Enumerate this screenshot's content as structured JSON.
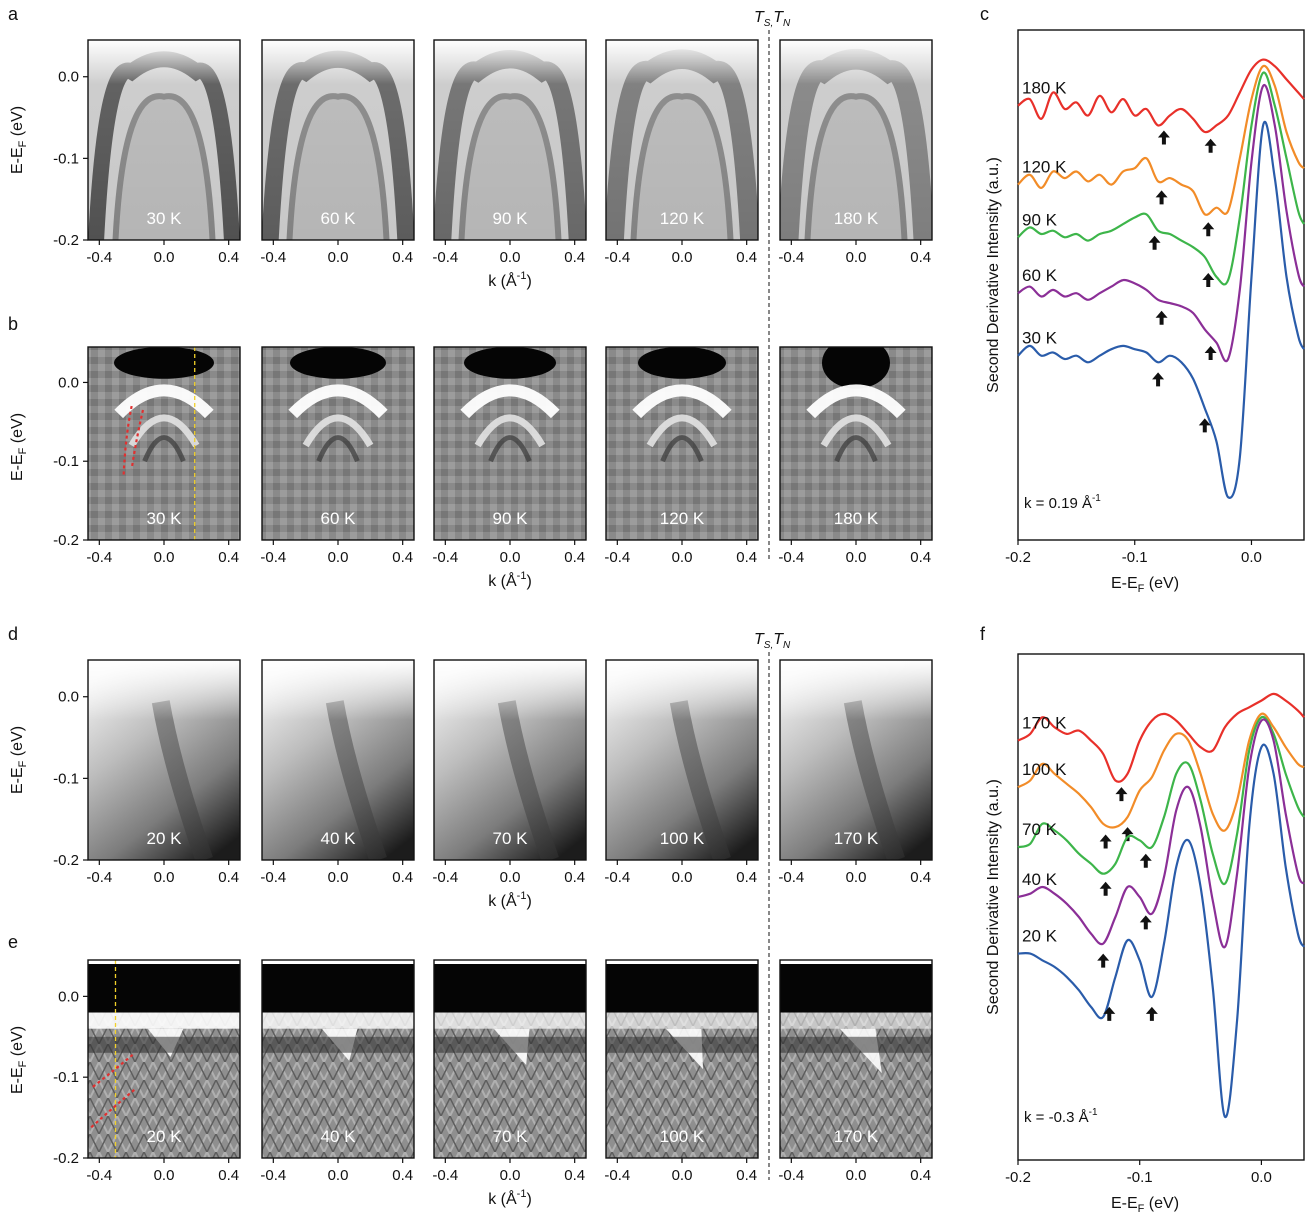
{
  "labels": {
    "a": "a",
    "b": "b",
    "c": "c",
    "d": "d",
    "e": "e",
    "f": "f",
    "ts_tn": "T",
    "ts_sub": "S,",
    "tn_letter": "T",
    "tn_sub": "N",
    "e_ef_main": "E-E",
    "e_ef_sub": "F",
    "e_ef_unit": " (eV)",
    "k_main": "k (Å",
    "k_sup": "-1",
    "k_close": ")",
    "sdi_label": "Second Derivative Intensity (a.u.)"
  },
  "image_axes": {
    "x_ticks": [
      "-0.4",
      "0.0",
      "0.4"
    ],
    "x_tick_values": [
      -0.4,
      0.0,
      0.4
    ],
    "x_range": [
      -0.47,
      0.47
    ],
    "y_ticks": [
      "0.0",
      "-0.1",
      "-0.2"
    ],
    "y_tick_values": [
      0.0,
      -0.1,
      -0.2
    ],
    "y_range": [
      -0.2,
      0.045
    ]
  },
  "rows": {
    "a": {
      "temps": [
        "30 K",
        "60 K",
        "90 K",
        "120 K",
        "180 K"
      ]
    },
    "b": {
      "temps": [
        "30 K",
        "60 K",
        "90 K",
        "120 K",
        "180 K"
      ],
      "cut_k": 0.19
    },
    "d": {
      "temps": [
        "20 K",
        "40 K",
        "70 K",
        "100 K",
        "170 K"
      ]
    },
    "e": {
      "temps": [
        "20 K",
        "40 K",
        "70 K",
        "100 K",
        "170 K"
      ],
      "cut_k": -0.3
    }
  },
  "colors": {
    "series": [
      "#e8302a",
      "#f28c28",
      "#3db54a",
      "#8b2f97",
      "#2a5caa"
    ],
    "cut_line": "#f2d12a",
    "dispersion_marker": "#e03030"
  },
  "chart_data": [
    {
      "panel": "c",
      "type": "line",
      "xlabel": "E-EF (eV)",
      "ylabel": "Second Derivative Intensity (a.u.)",
      "x_ticks": [
        "-0.2",
        "-0.1",
        "0.0"
      ],
      "x_tick_values": [
        -0.2,
        -0.1,
        0.0
      ],
      "xlim": [
        -0.2,
        0.045
      ],
      "annotation": "k = 0.19 Å",
      "annotation_sup": "-1",
      "series": [
        {
          "name": "180 K",
          "x": [
            -0.2,
            -0.19,
            -0.18,
            -0.17,
            -0.16,
            -0.15,
            -0.14,
            -0.13,
            -0.12,
            -0.11,
            -0.1,
            -0.09,
            -0.08,
            -0.07,
            -0.06,
            -0.05,
            -0.04,
            -0.03,
            -0.02,
            -0.01,
            0.0,
            0.01,
            0.02,
            0.03,
            0.04,
            0.045
          ],
          "y": [
            9.2,
            9.4,
            8.8,
            9.6,
            9.1,
            9.3,
            8.9,
            9.5,
            9.0,
            9.4,
            8.9,
            9.1,
            8.6,
            8.9,
            9.1,
            8.8,
            8.4,
            8.6,
            8.9,
            9.6,
            10.3,
            10.6,
            10.4,
            10.0,
            9.6,
            9.4
          ],
          "arrows": [
            -0.075,
            -0.035
          ]
        },
        {
          "name": "120 K",
          "x": [
            -0.2,
            -0.19,
            -0.18,
            -0.17,
            -0.16,
            -0.15,
            -0.14,
            -0.13,
            -0.12,
            -0.11,
            -0.1,
            -0.09,
            -0.08,
            -0.07,
            -0.06,
            -0.05,
            -0.04,
            -0.03,
            -0.02,
            -0.01,
            0.0,
            0.01,
            0.02,
            0.03,
            0.04,
            0.045
          ],
          "y": [
            6.8,
            7.1,
            6.7,
            7.2,
            7.0,
            7.2,
            6.9,
            7.1,
            6.8,
            7.2,
            7.3,
            7.6,
            6.9,
            7.0,
            6.8,
            6.6,
            5.9,
            6.1,
            6.0,
            7.6,
            9.4,
            10.4,
            9.8,
            8.4,
            7.5,
            7.3
          ],
          "arrows": [
            -0.077,
            -0.037
          ]
        },
        {
          "name": "90 K",
          "x": [
            -0.2,
            -0.19,
            -0.18,
            -0.17,
            -0.16,
            -0.15,
            -0.14,
            -0.13,
            -0.12,
            -0.11,
            -0.1,
            -0.09,
            -0.08,
            -0.07,
            -0.06,
            -0.05,
            -0.04,
            -0.03,
            -0.02,
            -0.01,
            0.0,
            0.01,
            0.02,
            0.03,
            0.04,
            0.045
          ],
          "y": [
            5.2,
            5.5,
            5.3,
            5.4,
            5.2,
            5.3,
            5.1,
            5.3,
            5.4,
            5.6,
            5.8,
            5.9,
            5.4,
            5.3,
            5.1,
            4.9,
            4.6,
            4.0,
            3.9,
            5.8,
            8.6,
            10.2,
            9.2,
            7.6,
            6.0,
            5.6
          ],
          "arrows": [
            -0.083,
            -0.037
          ]
        },
        {
          "name": "60 K",
          "x": [
            -0.2,
            -0.19,
            -0.18,
            -0.17,
            -0.16,
            -0.15,
            -0.14,
            -0.13,
            -0.12,
            -0.11,
            -0.1,
            -0.09,
            -0.08,
            -0.07,
            -0.06,
            -0.05,
            -0.04,
            -0.03,
            -0.02,
            -0.01,
            0.0,
            0.01,
            0.02,
            0.03,
            0.04,
            0.045
          ],
          "y": [
            3.5,
            3.7,
            3.4,
            3.6,
            3.4,
            3.5,
            3.3,
            3.5,
            3.7,
            3.9,
            3.8,
            3.6,
            3.3,
            3.2,
            3.1,
            2.9,
            2.4,
            2.0,
            1.5,
            3.6,
            7.5,
            9.8,
            8.6,
            6.0,
            4.1,
            3.7
          ],
          "arrows": [
            -0.077,
            -0.035
          ]
        },
        {
          "name": "30 K",
          "x": [
            -0.2,
            -0.19,
            -0.18,
            -0.17,
            -0.16,
            -0.15,
            -0.14,
            -0.13,
            -0.12,
            -0.11,
            -0.1,
            -0.09,
            -0.08,
            -0.07,
            -0.06,
            -0.05,
            -0.04,
            -0.03,
            -0.02,
            -0.01,
            0.0,
            0.01,
            0.02,
            0.03,
            0.04,
            0.045
          ],
          "y": [
            1.6,
            1.9,
            1.6,
            1.7,
            1.5,
            1.6,
            1.4,
            1.6,
            1.8,
            1.9,
            1.8,
            1.7,
            1.4,
            1.6,
            1.4,
            0.9,
            0.0,
            -1.0,
            -2.7,
            -1.5,
            4.0,
            8.6,
            7.0,
            4.0,
            2.2,
            1.8
          ],
          "arrows": [
            -0.08,
            -0.04
          ]
        }
      ]
    },
    {
      "panel": "f",
      "type": "line",
      "xlabel": "E-EF (eV)",
      "ylabel": "Second Derivative Intensity (a.u.)",
      "x_ticks": [
        "-0.2",
        "-0.1",
        "0.0"
      ],
      "x_tick_values": [
        -0.2,
        -0.1,
        0.0
      ],
      "xlim": [
        -0.2,
        0.035
      ],
      "annotation": "k = -0.3 Å",
      "annotation_sup": "-1",
      "series": [
        {
          "name": "170 K",
          "x": [
            -0.2,
            -0.19,
            -0.18,
            -0.17,
            -0.16,
            -0.15,
            -0.14,
            -0.13,
            -0.12,
            -0.11,
            -0.1,
            -0.09,
            -0.08,
            -0.07,
            -0.06,
            -0.05,
            -0.04,
            -0.03,
            -0.02,
            -0.01,
            0.0,
            0.01,
            0.02,
            0.03,
            0.035
          ],
          "y": [
            8.6,
            8.8,
            9.3,
            9.0,
            8.8,
            8.9,
            8.6,
            8.2,
            7.4,
            7.6,
            8.6,
            9.2,
            9.4,
            9.2,
            8.8,
            8.4,
            8.3,
            9.0,
            9.4,
            9.6,
            9.8,
            10.0,
            9.8,
            9.5,
            9.3
          ],
          "arrows": [
            -0.115
          ]
        },
        {
          "name": "100 K",
          "x": [
            -0.2,
            -0.19,
            -0.18,
            -0.17,
            -0.16,
            -0.15,
            -0.14,
            -0.13,
            -0.12,
            -0.11,
            -0.1,
            -0.09,
            -0.08,
            -0.07,
            -0.06,
            -0.05,
            -0.04,
            -0.03,
            -0.02,
            -0.01,
            0.0,
            0.01,
            0.02,
            0.03,
            0.035
          ],
          "y": [
            7.2,
            7.4,
            7.9,
            7.6,
            7.3,
            7.0,
            6.6,
            6.1,
            6.0,
            6.3,
            7.1,
            7.5,
            8.3,
            8.8,
            8.6,
            7.6,
            6.4,
            5.9,
            6.8,
            8.6,
            9.4,
            9.0,
            8.4,
            7.9,
            7.8
          ],
          "arrows": [
            -0.128,
            -0.11
          ]
        },
        {
          "name": "70 K",
          "x": [
            -0.2,
            -0.19,
            -0.18,
            -0.17,
            -0.16,
            -0.15,
            -0.14,
            -0.13,
            -0.12,
            -0.11,
            -0.1,
            -0.09,
            -0.08,
            -0.07,
            -0.06,
            -0.05,
            -0.04,
            -0.03,
            -0.02,
            -0.01,
            0.0,
            0.01,
            0.02,
            0.03,
            0.035
          ],
          "y": [
            5.4,
            5.5,
            6.1,
            5.9,
            5.6,
            5.2,
            4.9,
            4.6,
            4.9,
            5.7,
            5.6,
            5.4,
            6.3,
            7.6,
            7.9,
            6.8,
            5.2,
            4.3,
            5.8,
            8.3,
            9.3,
            8.8,
            7.6,
            6.6,
            6.3
          ],
          "arrows": [
            -0.128,
            -0.095
          ]
        },
        {
          "name": "40 K",
          "x": [
            -0.2,
            -0.19,
            -0.18,
            -0.17,
            -0.16,
            -0.15,
            -0.14,
            -0.13,
            -0.12,
            -0.11,
            -0.1,
            -0.09,
            -0.08,
            -0.07,
            -0.06,
            -0.05,
            -0.04,
            -0.03,
            -0.02,
            -0.01,
            0.0,
            0.01,
            0.02,
            0.03,
            0.035
          ],
          "y": [
            3.9,
            4.0,
            4.2,
            4.0,
            3.7,
            3.3,
            2.8,
            2.5,
            3.3,
            4.2,
            3.9,
            3.4,
            4.5,
            6.5,
            7.2,
            6.0,
            3.8,
            2.4,
            4.6,
            7.8,
            9.2,
            8.6,
            6.4,
            4.6,
            4.3
          ],
          "arrows": [
            -0.13,
            -0.095
          ]
        },
        {
          "name": "20 K",
          "x": [
            -0.2,
            -0.19,
            -0.18,
            -0.17,
            -0.16,
            -0.15,
            -0.14,
            -0.13,
            -0.12,
            -0.11,
            -0.1,
            -0.09,
            -0.08,
            -0.07,
            -0.06,
            -0.05,
            -0.04,
            -0.03,
            -0.02,
            -0.01,
            0.0,
            0.01,
            0.02,
            0.03,
            0.035
          ],
          "y": [
            2.2,
            2.2,
            2.0,
            1.8,
            1.5,
            1.1,
            0.6,
            0.3,
            1.5,
            2.6,
            2.0,
            0.9,
            2.5,
            4.8,
            5.6,
            4.2,
            1.2,
            -2.7,
            0.2,
            6.0,
            8.4,
            7.6,
            4.8,
            2.8,
            2.4
          ],
          "arrows": [
            -0.125,
            -0.09
          ]
        }
      ]
    }
  ]
}
